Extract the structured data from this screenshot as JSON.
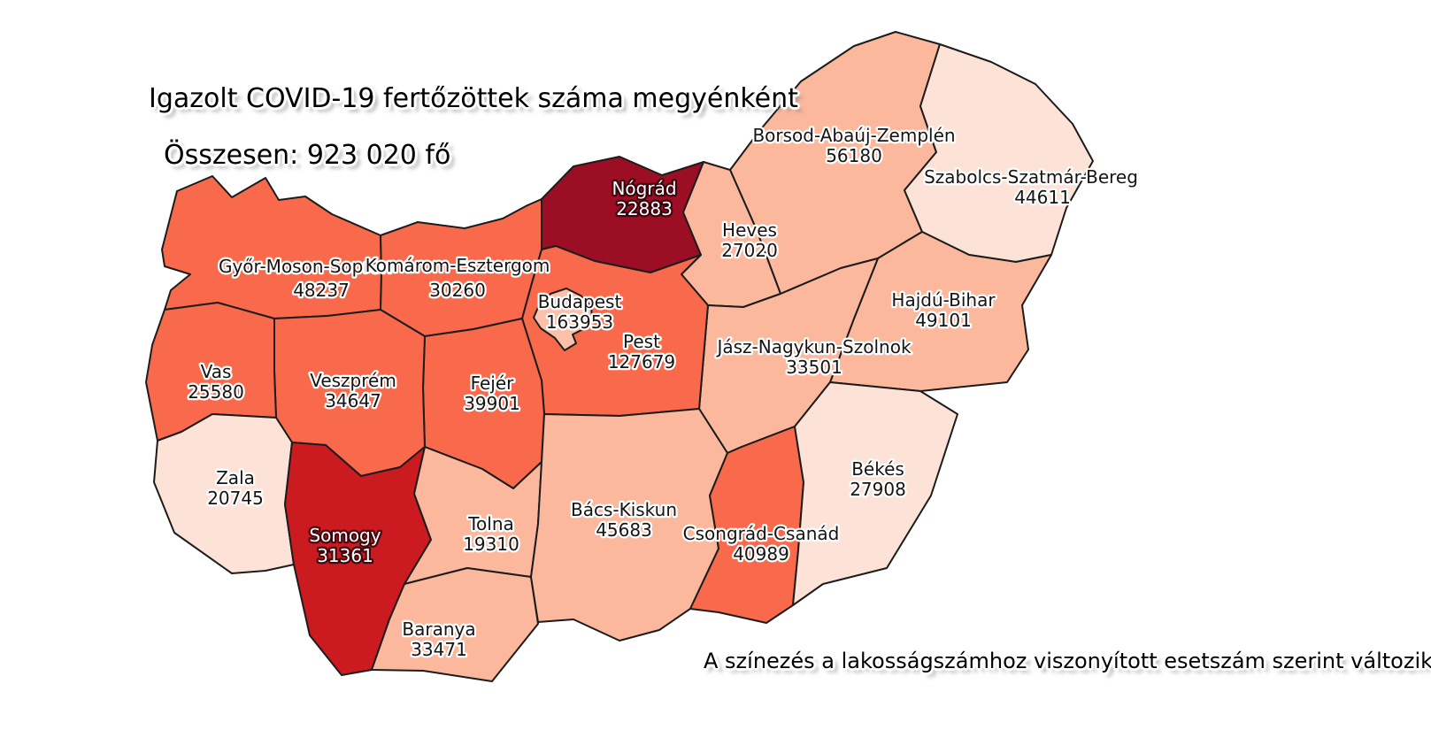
{
  "title": "Igazolt COVID-19 fertőzöttek száma megyénként",
  "subtitle": "Összesen: 923 020 fő",
  "footnote": "A színezés a lakosságszámhoz viszonyított esetszám szerint változik.",
  "chart_data": {
    "type": "choropleth_map",
    "title": "Igazolt COVID-19 fertőzöttek száma megyénként",
    "total": {
      "label": "Összesen",
      "value": 923020,
      "unit": "fő",
      "display": "923 020"
    },
    "color_note": "A színezés a lakosságszámhoz viszonyított esetszám szerint változik.",
    "palette": {
      "dark_red": "#9B0E24",
      "red": "#CC1B20",
      "orange_red": "#F9694B",
      "salmon": "#FBB89D",
      "budapest_salmon": "#FAC0AA",
      "light_pink": "#FDE3D7",
      "border": "#1C1C1C",
      "dark_label": "#141414",
      "light_label": "#FFFFFF"
    },
    "counties": [
      {
        "id": "gyor-moson-sopron",
        "name": "Győr-Moson-Sopron",
        "value": 48237,
        "tone": "orange_red",
        "text": "dark"
      },
      {
        "id": "komarom-esztergom",
        "name": "Komárom-Esztergom",
        "value": 30260,
        "tone": "orange_red",
        "text": "dark"
      },
      {
        "id": "nograd",
        "name": "Nógrád",
        "value": 22883,
        "tone": "dark_red",
        "text": "light"
      },
      {
        "id": "borsod-abauj-zemplen",
        "name": "Borsod-Abaúj-Zemplén",
        "value": 56180,
        "tone": "salmon",
        "text": "dark"
      },
      {
        "id": "szabolcs-szatmar-bereg",
        "name": "Szabolcs-Szatmár-Bereg",
        "value": 44611,
        "tone": "light_pink",
        "text": "dark"
      },
      {
        "id": "heves",
        "name": "Heves",
        "value": 27020,
        "tone": "salmon",
        "text": "dark"
      },
      {
        "id": "hajdu-bihar",
        "name": "Hajdú-Bihar",
        "value": 49101,
        "tone": "salmon",
        "text": "dark"
      },
      {
        "id": "jasz-nagykun-szolnok",
        "name": "Jász-Nagykun-Szolnok",
        "value": 33501,
        "tone": "salmon",
        "text": "dark"
      },
      {
        "id": "pest",
        "name": "Pest",
        "value": 127679,
        "tone": "orange_red",
        "text": "dark"
      },
      {
        "id": "budapest",
        "name": "Budapest",
        "value": 163953,
        "tone": "budapest_salmon",
        "text": "dark"
      },
      {
        "id": "fejer",
        "name": "Fejér",
        "value": 39901,
        "tone": "orange_red",
        "text": "dark"
      },
      {
        "id": "veszprem",
        "name": "Veszprém",
        "value": 34647,
        "tone": "orange_red",
        "text": "dark"
      },
      {
        "id": "vas",
        "name": "Vas",
        "value": 25580,
        "tone": "orange_red",
        "text": "dark"
      },
      {
        "id": "zala",
        "name": "Zala",
        "value": 20745,
        "tone": "light_pink",
        "text": "dark"
      },
      {
        "id": "somogy",
        "name": "Somogy",
        "value": 31361,
        "tone": "red",
        "text": "light"
      },
      {
        "id": "tolna",
        "name": "Tolna",
        "value": 19310,
        "tone": "salmon",
        "text": "dark"
      },
      {
        "id": "baranya",
        "name": "Baranya",
        "value": 33471,
        "tone": "salmon",
        "text": "dark"
      },
      {
        "id": "bacs-kiskun",
        "name": "Bács-Kiskun",
        "value": 45683,
        "tone": "salmon",
        "text": "dark"
      },
      {
        "id": "csongrad-csanad",
        "name": "Csongrád-Csanád",
        "value": 40989,
        "tone": "orange_red",
        "text": "dark"
      },
      {
        "id": "bekes",
        "name": "Békés",
        "value": 27908,
        "tone": "light_pink",
        "text": "dark"
      }
    ]
  }
}
